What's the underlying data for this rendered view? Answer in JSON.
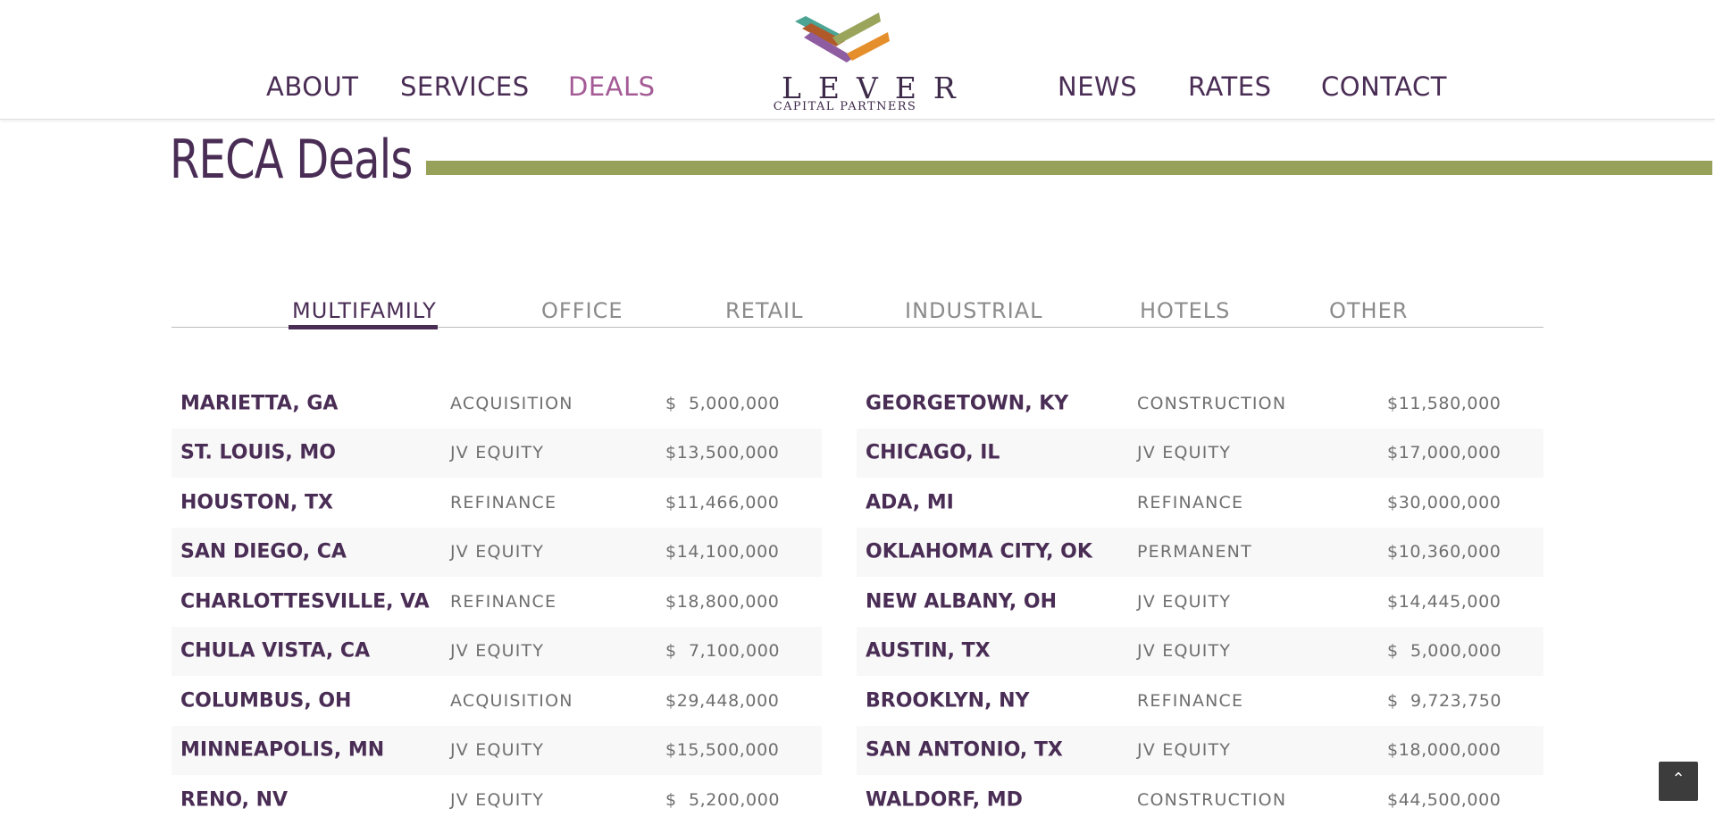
{
  "nav": {
    "left": [
      "ABOUT",
      "SERVICES",
      "DEALS"
    ],
    "right": [
      "NEWS",
      "RATES",
      "CONTACT"
    ],
    "active": "DEALS"
  },
  "logo": {
    "wordmark": "LEVER",
    "tagline": "CAPITAL PARTNERS",
    "colors": [
      "#9aa45a",
      "#b05a2a",
      "#4ba494",
      "#e58f2c",
      "#8e5ca0"
    ]
  },
  "page": {
    "title": "RECA Deals"
  },
  "tabs": {
    "items": [
      "MULTIFAMILY",
      "OFFICE",
      "RETAIL",
      "INDUSTRIAL",
      "HOTELS",
      "OTHER"
    ],
    "active": "MULTIFAMILY"
  },
  "deals": {
    "left": [
      {
        "city": "MARIETTA, GA",
        "type": "ACQUISITION",
        "amount": "$  5,000,000"
      },
      {
        "city": "ST. LOUIS, MO",
        "type": "JV EQUITY",
        "amount": "$13,500,000"
      },
      {
        "city": "HOUSTON, TX",
        "type": "REFINANCE",
        "amount": "$11,466,000"
      },
      {
        "city": "SAN DIEGO, CA",
        "type": "JV EQUITY",
        "amount": "$14,100,000"
      },
      {
        "city": "CHARLOTTESVILLE, VA",
        "type": "REFINANCE",
        "amount": "$18,800,000"
      },
      {
        "city": "CHULA VISTA, CA",
        "type": "JV EQUITY",
        "amount": "$  7,100,000"
      },
      {
        "city": "COLUMBUS, OH",
        "type": "ACQUISITION",
        "amount": "$29,448,000"
      },
      {
        "city": "MINNEAPOLIS, MN",
        "type": "JV EQUITY",
        "amount": "$15,500,000"
      },
      {
        "city": "RENO, NV",
        "type": "JV EQUITY",
        "amount": "$  5,200,000"
      }
    ],
    "right": [
      {
        "city": "GEORGETOWN, KY",
        "type": "CONSTRUCTION",
        "amount": "$11,580,000"
      },
      {
        "city": "CHICAGO, IL",
        "type": "JV EQUITY",
        "amount": "$17,000,000"
      },
      {
        "city": "ADA, MI",
        "type": "REFINANCE",
        "amount": "$30,000,000"
      },
      {
        "city": "OKLAHOMA CITY, OK",
        "type": "PERMANENT",
        "amount": "$10,360,000"
      },
      {
        "city": "NEW ALBANY, OH",
        "type": "JV EQUITY",
        "amount": "$14,445,000"
      },
      {
        "city": "AUSTIN, TX",
        "type": "JV EQUITY",
        "amount": "$  5,000,000"
      },
      {
        "city": "BROOKLYN, NY",
        "type": "REFINANCE",
        "amount": "$  9,723,750"
      },
      {
        "city": "SAN ANTONIO, TX",
        "type": "JV EQUITY",
        "amount": "$18,000,000"
      },
      {
        "city": "WALDORF, MD",
        "type": "CONSTRUCTION",
        "amount": "$44,500,000"
      }
    ]
  },
  "back_to_top": {
    "icon": "chevron-up-icon",
    "glyph": "⌃"
  }
}
